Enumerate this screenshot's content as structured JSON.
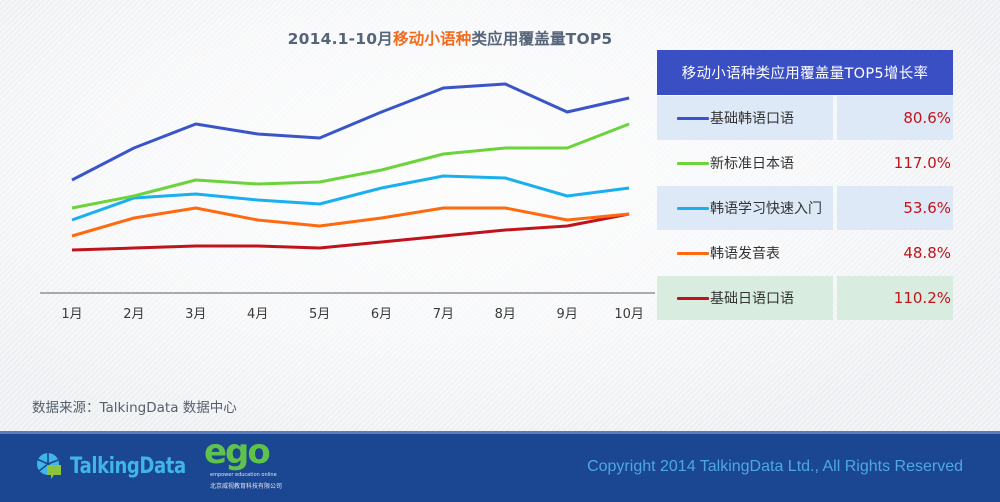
{
  "title": {
    "prefix": "2014.1-10月",
    "highlight": "移动小语种",
    "suffix": "类应用覆盖量TOP5"
  },
  "chart_data": {
    "type": "line",
    "title": "2014.1-10月移动小语种类应用覆盖量TOP5",
    "xlabel": "",
    "ylabel": "",
    "y_axis_shown": false,
    "grid": false,
    "y_units": "relative index (no y-axis scale shown)",
    "ylim": [
      0,
      100
    ],
    "categories": [
      "1月",
      "2月",
      "3月",
      "4月",
      "5月",
      "6月",
      "7月",
      "8月",
      "9月",
      "10月"
    ],
    "series": [
      {
        "name": "基础韩语口语",
        "color": "#3a55c8",
        "values": [
          51,
          67,
          79,
          74,
          72,
          85,
          97,
          99,
          85,
          92
        ]
      },
      {
        "name": "新标准日本语",
        "color": "#6cd43a",
        "values": [
          37,
          43,
          51,
          49,
          50,
          56,
          64,
          67,
          67,
          79
        ]
      },
      {
        "name": "韩语学习快速入门",
        "color": "#1ab0ef",
        "values": [
          31,
          42,
          44,
          41,
          39,
          47,
          53,
          52,
          43,
          47
        ]
      },
      {
        "name": "韩语发音表",
        "color": "#ff6a10",
        "values": [
          23,
          32,
          37,
          31,
          28,
          32,
          37,
          37,
          31,
          34
        ]
      },
      {
        "name": "基础日语口语",
        "color": "#c0141c",
        "values": [
          16,
          17,
          18,
          18,
          17,
          20,
          23,
          26,
          28,
          34
        ]
      }
    ],
    "legend": "right"
  },
  "table": {
    "header": "移动小语种类应用覆盖量TOP5增长率",
    "rows": [
      {
        "name": "基础韩语口语",
        "color": "#3a55c8",
        "rate": "80.6%"
      },
      {
        "name": "新标准日本语",
        "color": "#6cd43a",
        "rate": "117.0%"
      },
      {
        "name": "韩语学习快速入门",
        "color": "#1ab0ef",
        "rate": "53.6%"
      },
      {
        "name": "韩语发音表",
        "color": "#ff6a10",
        "rate": "48.8%"
      },
      {
        "name": "基础日语口语",
        "color": "#c0141c",
        "rate": "110.2%"
      }
    ]
  },
  "source": "数据来源：TalkingData 数据中心",
  "footer": {
    "brand": "TalkingData",
    "partner_logo": "ego",
    "partner_tagline": "empower education online",
    "partner_company": "北京威视教育科技有限公司",
    "copyright": "Copyright 2014 TalkingData Ltd., All Rights Reserved"
  }
}
